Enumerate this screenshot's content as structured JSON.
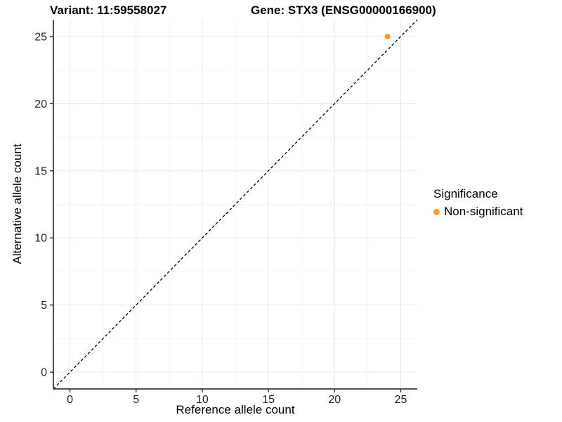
{
  "titles": {
    "variant": "Variant: 11:59558027",
    "gene": "Gene: STX3 (ENSG00000166900)"
  },
  "axis_labels": {
    "x": "Reference allele count",
    "y": "Alternative allele count"
  },
  "legend": {
    "title": "Significance",
    "items": [
      {
        "label": "Non-significant",
        "color": "#F89D2D"
      }
    ]
  },
  "chart_data": {
    "type": "scatter",
    "title_left": "Variant: 11:59558027",
    "title_right": "Gene: STX3 (ENSG00000166900)",
    "xlabel": "Reference allele count",
    "ylabel": "Alternative allele count",
    "series": [
      {
        "name": "Non-significant",
        "color": "#F89D2D",
        "points": [
          {
            "x": 24,
            "y": 25
          }
        ]
      }
    ],
    "x_ticks": [
      0,
      5,
      10,
      15,
      20,
      25
    ],
    "y_ticks": [
      0,
      5,
      10,
      15,
      20,
      25
    ],
    "xlim": [
      -1.25,
      26.25
    ],
    "ylim": [
      -1.25,
      26.25
    ],
    "identity_line": {
      "equation": "y = x",
      "style": "dashed",
      "color": "#000000"
    },
    "grid": "major+minor",
    "legend_position": "right",
    "point_radius_px": 4
  }
}
